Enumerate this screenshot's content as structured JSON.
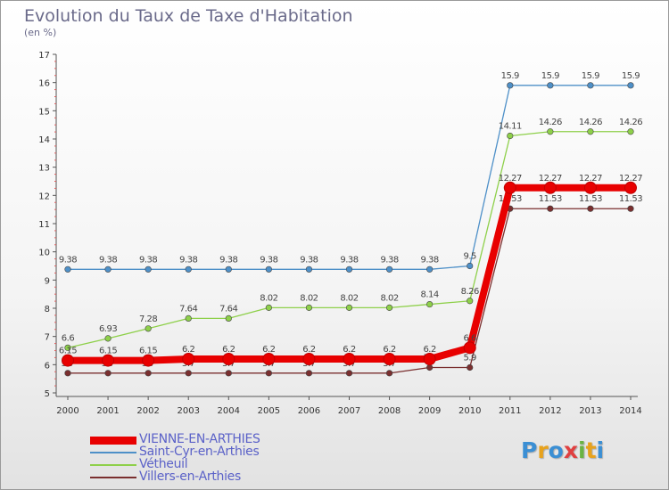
{
  "title": "Evolution du Taux de Taxe d'Habitation",
  "subtitle": "(en %)",
  "logo": {
    "text": "Proxiti",
    "colors": [
      "#3b8fd4",
      "#e7a21d",
      "#3b8fd4",
      "#e04040",
      "#6ab343",
      "#e7a21d",
      "#3b8fd4"
    ]
  },
  "chart_data": {
    "type": "line",
    "title": "Evolution du Taux de Taxe d'Habitation",
    "ylabel": "(en %)",
    "xlabel": "",
    "x": [
      "2000",
      "2001",
      "2002",
      "2003",
      "2004",
      "2005",
      "2006",
      "2007",
      "2008",
      "2009",
      "2010",
      "2011",
      "2012",
      "2013",
      "2014"
    ],
    "ylim": [
      5,
      17
    ],
    "yticks": [
      5,
      6,
      7,
      8,
      9,
      10,
      11,
      12,
      13,
      14,
      15,
      16,
      17
    ],
    "grid": false,
    "legend_position": "bottom-left",
    "series": [
      {
        "name": "VIENNE-EN-ARTHIES",
        "color": "#e80000",
        "width": 8,
        "values": [
          6.15,
          6.15,
          6.15,
          6.2,
          6.2,
          6.2,
          6.2,
          6.2,
          6.2,
          6.2,
          6.6,
          12.27,
          12.27,
          12.27,
          12.27
        ],
        "labels": [
          "6.15",
          "6.15",
          "6.15",
          "6.2",
          "6.2",
          "6.2",
          "6.2",
          "6.2",
          "6.2",
          "6.2",
          "6.6",
          "12.27",
          "12.27",
          "12.27",
          "12.27"
        ]
      },
      {
        "name": "Saint-Cyr-en-Arthies",
        "color": "#4e90c8",
        "width": 1.3,
        "values": [
          9.38,
          9.38,
          9.38,
          9.38,
          9.38,
          9.38,
          9.38,
          9.38,
          9.38,
          9.38,
          9.5,
          15.9,
          15.9,
          15.9,
          15.9
        ],
        "labels": [
          "9.38",
          "9.38",
          "9.38",
          "9.38",
          "9.38",
          "9.38",
          "9.38",
          "9.38",
          "9.38",
          "9.38",
          "9.5",
          "15.9",
          "15.9",
          "15.9",
          "15.9"
        ]
      },
      {
        "name": "Vétheuil",
        "color": "#8ed04a",
        "width": 1.3,
        "values": [
          6.6,
          6.93,
          7.28,
          7.64,
          7.64,
          8.02,
          8.02,
          8.02,
          8.02,
          8.14,
          8.26,
          14.11,
          14.26,
          14.26,
          14.26
        ],
        "labels": [
          "6.6",
          "6.93",
          "7.28",
          "7.64",
          "7.64",
          "8.02",
          "8.02",
          "8.02",
          "8.02",
          "8.14",
          "8.26",
          "14.11",
          "14.26",
          "14.26",
          "14.26"
        ]
      },
      {
        "name": "Villers-en-Arthies",
        "color": "#7a2f2f",
        "width": 1.3,
        "values": [
          5.7,
          5.7,
          5.7,
          5.7,
          5.7,
          5.7,
          5.7,
          5.7,
          5.7,
          5.9,
          5.9,
          11.53,
          11.53,
          11.53,
          11.53
        ],
        "labels": [
          "5.7",
          "5.7",
          "5.7",
          "5.7",
          "5.7",
          "5.7",
          "5.7",
          "5.7",
          "5.7",
          "5.9",
          "5.9",
          "11.53",
          "11.53",
          "11.53",
          "11.53"
        ]
      }
    ]
  }
}
